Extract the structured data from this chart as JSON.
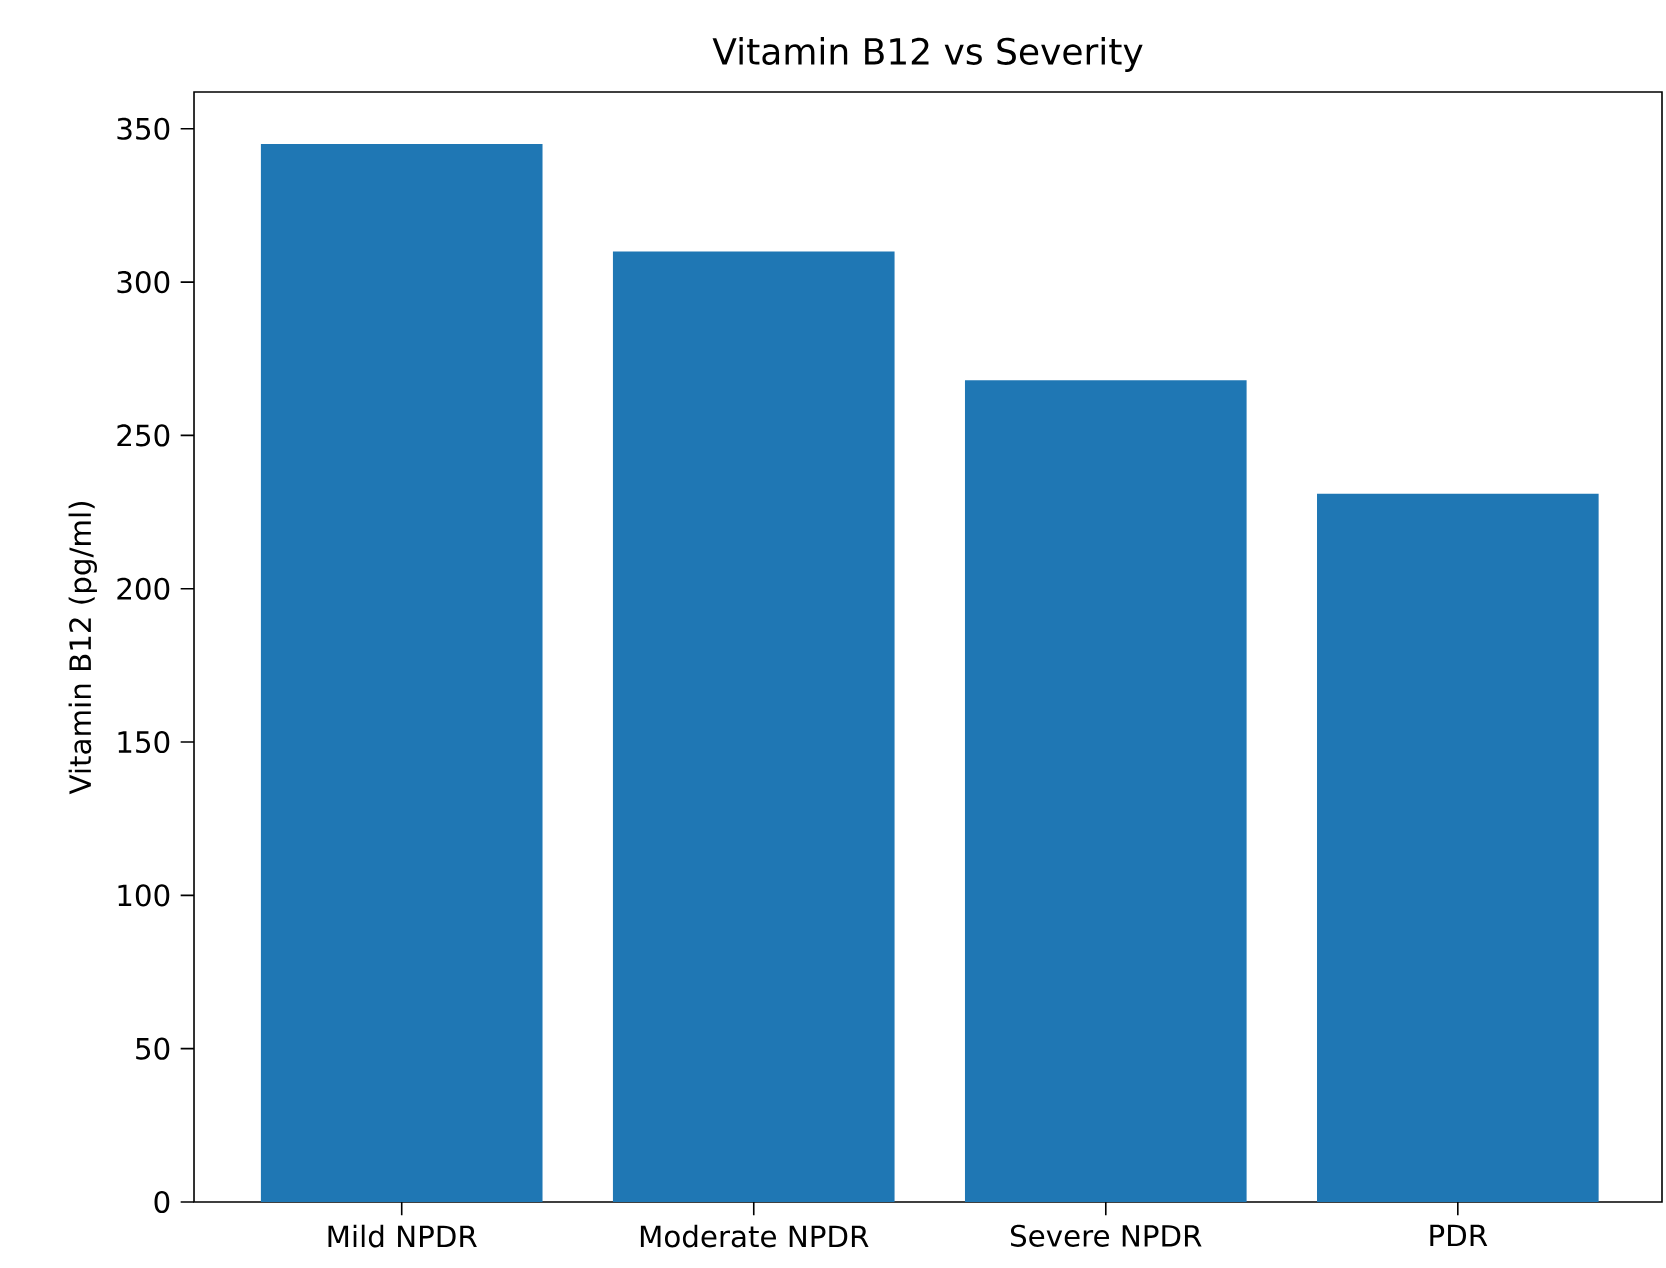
{
  "chart_data": {
    "type": "bar",
    "title": "Vitamin B12 vs Severity",
    "ylabel": "Vitamin B12 (pg/ml)",
    "categories": [
      "Mild NPDR",
      "Moderate NPDR",
      "Severe NPDR",
      "PDR"
    ],
    "values": [
      345,
      310,
      268,
      231
    ],
    "color": "#1f77b4",
    "ylim": [
      0,
      362
    ],
    "yticks": [
      0,
      50,
      100,
      150,
      200,
      250,
      300,
      350
    ],
    "grid": false
  }
}
